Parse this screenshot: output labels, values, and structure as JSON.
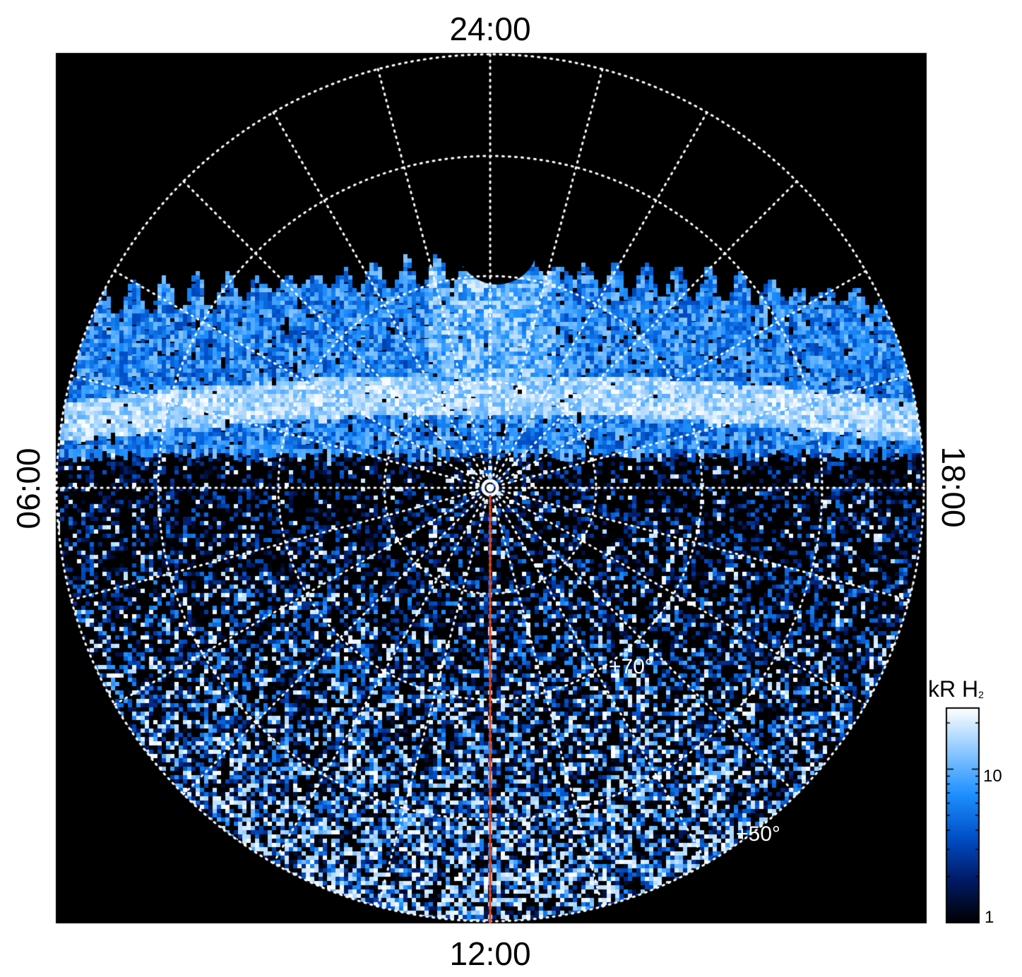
{
  "local_time_labels": {
    "top": "24:00",
    "bottom": "12:00",
    "left": "06:00",
    "right": "18:00"
  },
  "latitude_labels": {
    "lat70": "+70°",
    "lat50": "+50°"
  },
  "colorbar": {
    "title": "kR H",
    "title_sub": "2",
    "tick_10": "10",
    "tick_1": "1",
    "scale": "log",
    "range": [
      1,
      25
    ],
    "colors": [
      "#000000",
      "#001a66",
      "#0050c8",
      "#1e90ff",
      "#8cc8ff",
      "#ffffff"
    ]
  },
  "colors": {
    "background": "#000000",
    "grid": "#ffffff",
    "meridian_line": "#d8442a",
    "colorbar_frame": "#000000"
  }
}
